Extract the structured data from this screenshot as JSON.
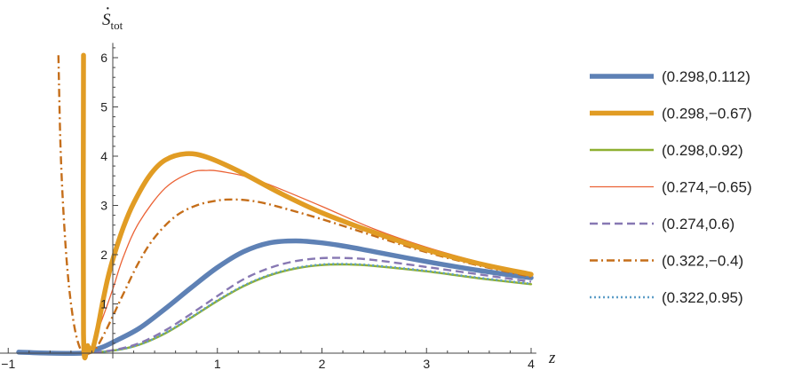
{
  "chart_data": {
    "type": "line",
    "xlabel": "z",
    "ylabel": {
      "main": "S",
      "sub": "tot"
    },
    "xlim": [
      -1,
      4.05
    ],
    "ylim": [
      0,
      6.3
    ],
    "xticks": [
      -1,
      1,
      2,
      3,
      4
    ],
    "yticks": [
      1,
      2,
      3,
      4,
      5,
      6
    ],
    "grid": false,
    "legend": "right",
    "series": [
      {
        "name": "(0.298,0.112)",
        "color": "#5e81b5",
        "style": "solid",
        "weight": "thick",
        "x": [
          -0.9,
          -0.6,
          -0.3,
          -0.2,
          -0.1,
          0.0,
          0.25,
          0.5,
          0.75,
          1.0,
          1.25,
          1.5,
          1.75,
          2.0,
          2.25,
          2.5,
          3.0,
          3.5,
          4.0
        ],
        "y": [
          0.02,
          0.0,
          0.0,
          0.05,
          0.12,
          0.22,
          0.5,
          0.9,
          1.33,
          1.74,
          2.06,
          2.24,
          2.28,
          2.24,
          2.16,
          2.06,
          1.86,
          1.68,
          1.53
        ]
      },
      {
        "name": "(0.298,−0.67)",
        "color": "#e19c24",
        "style": "solid",
        "weight": "thick",
        "x": [
          -0.28,
          -0.28,
          -0.24,
          -0.2,
          -0.15,
          -0.1,
          -0.05,
          0.0,
          0.1,
          0.2,
          0.35,
          0.5,
          0.7,
          0.9,
          1.2,
          1.6,
          2.0,
          2.5,
          3.0,
          3.5,
          4.0
        ],
        "y": [
          6.05,
          0.4,
          0.15,
          0.05,
          0.45,
          1.0,
          1.5,
          1.9,
          2.55,
          3.05,
          3.6,
          3.92,
          4.05,
          3.98,
          3.7,
          3.25,
          2.85,
          2.45,
          2.1,
          1.82,
          1.6
        ]
      },
      {
        "name": "(0.298,0.92)",
        "color": "#8fb032",
        "style": "solid",
        "weight": "medium",
        "x": [
          -0.3,
          0.0,
          0.25,
          0.5,
          0.75,
          1.0,
          1.25,
          1.5,
          1.75,
          2.0,
          2.25,
          2.5,
          3.0,
          3.5,
          4.0
        ],
        "y": [
          0.0,
          0.05,
          0.17,
          0.4,
          0.72,
          1.06,
          1.36,
          1.58,
          1.72,
          1.79,
          1.8,
          1.77,
          1.66,
          1.52,
          1.4
        ]
      },
      {
        "name": "(0.274,−0.65)",
        "color": "#eb6235",
        "style": "solid",
        "weight": "thin",
        "x": [
          -0.22,
          -0.1,
          0.0,
          0.1,
          0.25,
          0.5,
          0.75,
          0.9,
          1.0,
          1.25,
          1.5,
          2.0,
          2.5,
          3.0,
          3.5,
          4.0
        ],
        "y": [
          0.05,
          0.7,
          1.3,
          1.95,
          2.65,
          3.35,
          3.67,
          3.71,
          3.7,
          3.6,
          3.42,
          2.98,
          2.52,
          2.15,
          1.85,
          1.58
        ]
      },
      {
        "name": "(0.274,0.6)",
        "color": "#8778b3",
        "style": "dashed",
        "weight": "medium",
        "x": [
          -0.3,
          0.0,
          0.25,
          0.5,
          0.75,
          1.0,
          1.25,
          1.5,
          1.75,
          2.0,
          2.25,
          2.5,
          3.0,
          3.5,
          4.0
        ],
        "y": [
          0.0,
          0.06,
          0.2,
          0.46,
          0.8,
          1.16,
          1.5,
          1.73,
          1.87,
          1.93,
          1.93,
          1.89,
          1.75,
          1.6,
          1.45
        ]
      },
      {
        "name": "(0.322,−0.4)",
        "color": "#c56e1a",
        "style": "dashdot",
        "weight": "medium",
        "x": [
          -0.52,
          -0.5,
          -0.47,
          -0.43,
          -0.38,
          -0.33,
          -0.28,
          -0.22,
          -0.16,
          -0.08,
          0.0,
          0.1,
          0.25,
          0.4,
          0.6,
          0.8,
          1.0,
          1.15,
          1.3,
          1.5,
          2.0,
          2.5,
          3.0,
          3.5,
          4.0
        ],
        "y": [
          6.05,
          4.2,
          2.8,
          1.6,
          0.7,
          0.2,
          0.0,
          0.0,
          0.1,
          0.4,
          0.75,
          1.2,
          1.85,
          2.35,
          2.78,
          3.0,
          3.1,
          3.12,
          3.1,
          3.02,
          2.72,
          2.38,
          2.05,
          1.78,
          1.55
        ]
      },
      {
        "name": "(0.322,0.95)",
        "color": "#5d9ec7",
        "style": "dotted",
        "weight": "medium",
        "x": [
          -0.3,
          0.0,
          0.25,
          0.5,
          0.75,
          1.0,
          1.25,
          1.5,
          1.75,
          2.0,
          2.25,
          2.5,
          3.0,
          3.5,
          4.0
        ],
        "y": [
          0.0,
          0.05,
          0.17,
          0.41,
          0.73,
          1.07,
          1.37,
          1.59,
          1.73,
          1.8,
          1.81,
          1.78,
          1.67,
          1.53,
          1.41
        ]
      }
    ]
  }
}
